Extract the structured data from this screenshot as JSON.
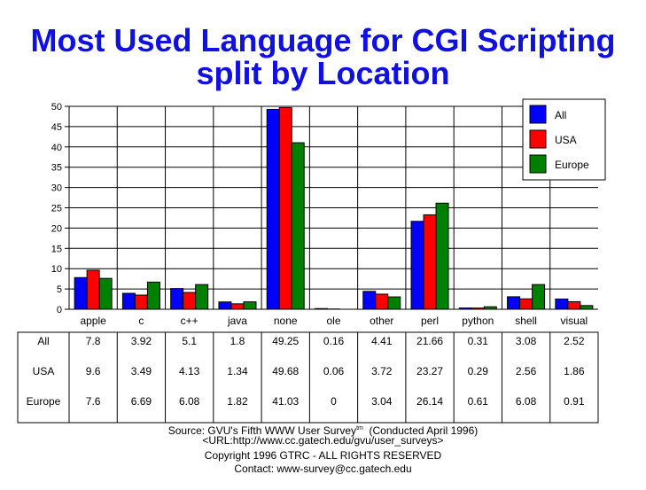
{
  "title_line1": "Most Used Language for CGI Scripting",
  "title_line2": "split by Location",
  "chart_data": {
    "type": "bar",
    "categories": [
      "apple",
      "c",
      "c++",
      "java",
      "none",
      "ole",
      "other",
      "perl",
      "python",
      "shell",
      "visual"
    ],
    "series": [
      {
        "name": "All",
        "color": "#0000ff",
        "values": [
          7.8,
          3.92,
          5.1,
          1.8,
          49.25,
          0.16,
          4.41,
          21.66,
          0.31,
          3.08,
          2.52
        ]
      },
      {
        "name": "USA",
        "color": "#ff0000",
        "values": [
          9.6,
          3.49,
          4.13,
          1.34,
          49.68,
          0.06,
          3.72,
          23.27,
          0.29,
          2.56,
          1.86
        ]
      },
      {
        "name": "Europe",
        "color": "#008000",
        "values": [
          7.6,
          6.69,
          6.08,
          1.82,
          41.03,
          0,
          3.04,
          26.14,
          0.61,
          6.08,
          0.91
        ]
      }
    ],
    "ylim": [
      0,
      50
    ],
    "yticks": [
      0,
      5,
      10,
      15,
      20,
      25,
      30,
      35,
      40,
      45,
      50
    ],
    "grid": true,
    "legend": "top-right",
    "table": {
      "row_labels": [
        "All",
        "USA",
        "Europe"
      ],
      "rows": [
        [
          "7.8",
          "3.92",
          "5.1",
          "1.8",
          "49.25",
          "0.16",
          "4.41",
          "21.66",
          "0.31",
          "3.08",
          "2.52"
        ],
        [
          "9.6",
          "3.49",
          "4.13",
          "1.34",
          "49.68",
          "0.06",
          "3.72",
          "23.27",
          "0.29",
          "2.56",
          "1.86"
        ],
        [
          "7.6",
          "6.69",
          "6.08",
          "1.82",
          "41.03",
          "0",
          "3.04",
          "26.14",
          "0.61",
          "6.08",
          "0.91"
        ]
      ]
    }
  },
  "footer": {
    "source_prefix": "Source: GVU's Fifth WWW User Survey",
    "source_sup": "tm",
    "source_suffix": "  (Conducted April 1996)",
    "url": "<URL:http://www.cc.gatech.edu/gvu/user_surveys>",
    "copyright": "Copyright 1996 GTRC -  ALL RIGHTS RESERVED",
    "contact": "Contact: www-survey@cc.gatech.edu"
  }
}
